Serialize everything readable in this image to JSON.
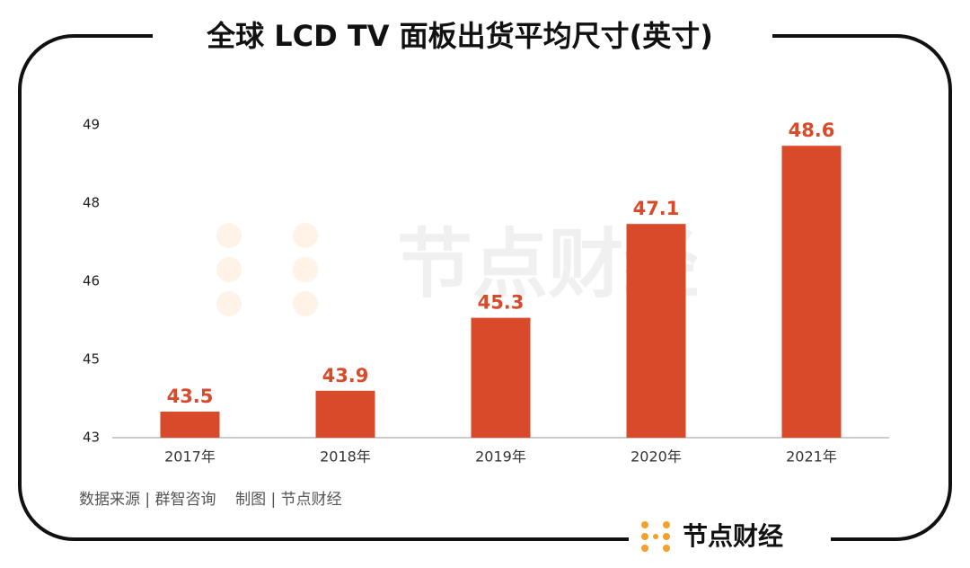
{
  "chart_data": {
    "type": "bar",
    "title": "全球 LCD TV 面板出货平均尺寸(英寸)",
    "categories": [
      "2017年",
      "2018年",
      "2019年",
      "2020年",
      "2021年"
    ],
    "values": [
      43.5,
      43.9,
      45.3,
      47.1,
      48.6
    ],
    "color": "#d84a2a",
    "ylim": [
      43,
      49
    ],
    "yticks": [
      43,
      {
        "value": 44.5,
        "label": "45"
      },
      46,
      {
        "value": 47.5,
        "label": "48"
      },
      49
    ],
    "grid": false,
    "source": "数据来源 | 群智咨询    制图 | 节点财经",
    "watermark": "节点财经",
    "brand": "节点财经"
  }
}
